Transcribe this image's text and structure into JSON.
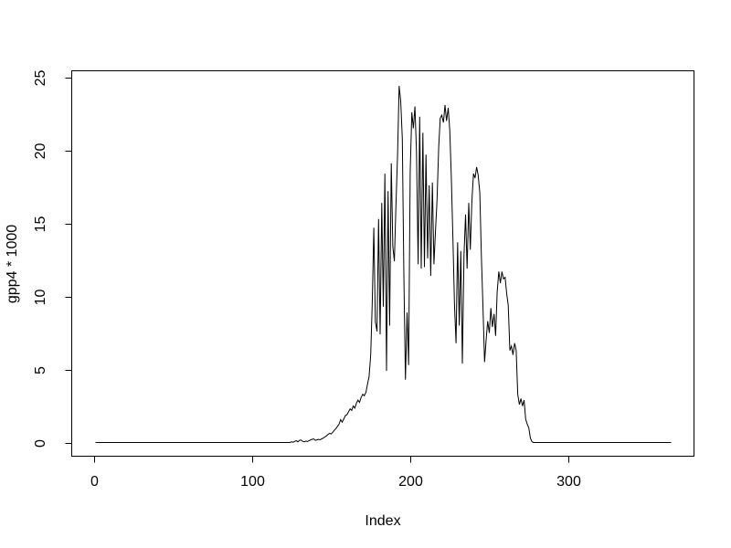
{
  "chart_data": {
    "type": "line",
    "title": "",
    "xlabel": "Index",
    "ylabel": "gpp4 * 1000",
    "legend": null,
    "grid": false,
    "line_color": "#000000",
    "background_color": "#ffffff",
    "x_ticks": [
      0,
      100,
      200,
      300
    ],
    "y_ticks": [
      0,
      5,
      10,
      15,
      20,
      25
    ],
    "xlim": [
      -14.02,
      379.44
    ],
    "ylim": [
      -0.9375,
      25.4375
    ],
    "x_range_of_data": [
      1,
      365
    ],
    "y_range_of_data": [
      0,
      24.4
    ],
    "series": [
      {
        "name": "gpp4 * 1000",
        "points": [
          [
            1,
            0
          ],
          [
            124,
            0
          ],
          [
            125,
            0.05
          ],
          [
            126,
            0.02
          ],
          [
            127,
            0.08
          ],
          [
            128,
            0.12
          ],
          [
            129,
            0.05
          ],
          [
            130,
            0.15
          ],
          [
            131,
            0.17
          ],
          [
            132,
            0.08
          ],
          [
            133,
            0.05
          ],
          [
            134,
            0.1
          ],
          [
            135,
            0.06
          ],
          [
            136,
            0.12
          ],
          [
            137,
            0.18
          ],
          [
            138,
            0.22
          ],
          [
            139,
            0.25
          ],
          [
            140,
            0.15
          ],
          [
            141,
            0.18
          ],
          [
            142,
            0.22
          ],
          [
            143,
            0.18
          ],
          [
            144,
            0.25
          ],
          [
            145,
            0.3
          ],
          [
            146,
            0.38
          ],
          [
            147,
            0.45
          ],
          [
            148,
            0.55
          ],
          [
            149,
            0.63
          ],
          [
            150,
            0.58
          ],
          [
            151,
            0.7
          ],
          [
            152,
            0.83
          ],
          [
            153,
            0.95
          ],
          [
            154,
            1.1
          ],
          [
            155,
            1.25
          ],
          [
            156,
            1.56
          ],
          [
            157,
            1.4
          ],
          [
            158,
            1.6
          ],
          [
            159,
            1.85
          ],
          [
            160,
            1.9
          ],
          [
            161,
            2.1
          ],
          [
            162,
            2.3
          ],
          [
            163,
            2.2
          ],
          [
            164,
            2.5
          ],
          [
            165,
            2.35
          ],
          [
            166,
            2.7
          ],
          [
            167,
            2.9
          ],
          [
            168,
            2.75
          ],
          [
            169,
            3.1
          ],
          [
            170,
            3.3
          ],
          [
            171,
            3.2
          ],
          [
            172,
            3.44
          ],
          [
            173,
            4.0
          ],
          [
            174,
            4.5
          ],
          [
            175,
            6.0
          ],
          [
            176,
            9.6
          ],
          [
            177,
            14.7
          ],
          [
            178,
            8.25
          ],
          [
            179,
            7.6
          ],
          [
            180,
            15.3
          ],
          [
            181,
            7.4
          ],
          [
            182,
            16.4
          ],
          [
            183,
            9.3
          ],
          [
            184,
            18.4
          ],
          [
            185,
            4.9
          ],
          [
            186,
            17.2
          ],
          [
            187,
            8.0
          ],
          [
            188,
            19.1
          ],
          [
            189,
            13.4
          ],
          [
            190,
            12.4
          ],
          [
            191,
            16.2
          ],
          [
            192,
            19.7
          ],
          [
            193,
            24.4
          ],
          [
            194,
            23.4
          ],
          [
            195,
            20.8
          ],
          [
            196,
            11.4
          ],
          [
            197,
            4.3
          ],
          [
            198,
            8.9
          ],
          [
            199,
            5.3
          ],
          [
            200,
            18.5
          ],
          [
            201,
            22.6
          ],
          [
            202,
            21.5
          ],
          [
            203,
            23.0
          ],
          [
            204,
            19.9
          ],
          [
            205,
            12.2
          ],
          [
            206,
            22.3
          ],
          [
            207,
            11.9
          ],
          [
            208,
            21.2
          ],
          [
            209,
            12.0
          ],
          [
            210,
            19.7
          ],
          [
            211,
            12.6
          ],
          [
            212,
            17.6
          ],
          [
            213,
            11.4
          ],
          [
            214,
            17.8
          ],
          [
            215,
            12.2
          ],
          [
            216,
            14.5
          ],
          [
            217,
            16.6
          ],
          [
            218,
            20.2
          ],
          [
            219,
            22.2
          ],
          [
            220,
            22.4
          ],
          [
            221,
            21.9
          ],
          [
            222,
            23.1
          ],
          [
            223,
            22.0
          ],
          [
            224,
            22.9
          ],
          [
            225,
            21.4
          ],
          [
            226,
            18.2
          ],
          [
            227,
            13.9
          ],
          [
            228,
            9.4
          ],
          [
            229,
            6.8
          ],
          [
            230,
            13.7
          ],
          [
            231,
            8.0
          ],
          [
            232,
            13.1
          ],
          [
            233,
            5.4
          ],
          [
            234,
            12.8
          ],
          [
            235,
            15.6
          ],
          [
            236,
            11.9
          ],
          [
            237,
            16.4
          ],
          [
            238,
            13.2
          ],
          [
            239,
            16.5
          ],
          [
            240,
            18.4
          ],
          [
            241,
            18.1
          ],
          [
            242,
            18.85
          ],
          [
            243,
            18.3
          ],
          [
            244,
            17.1
          ],
          [
            245,
            12.8
          ],
          [
            246,
            9.4
          ],
          [
            247,
            5.5
          ],
          [
            248,
            7.0
          ],
          [
            249,
            8.3
          ],
          [
            250,
            7.5
          ],
          [
            251,
            9.2
          ],
          [
            252,
            7.9
          ],
          [
            253,
            8.8
          ],
          [
            254,
            7.3
          ],
          [
            255,
            10.3
          ],
          [
            256,
            11.7
          ],
          [
            257,
            10.9
          ],
          [
            258,
            11.7
          ],
          [
            259,
            11.2
          ],
          [
            260,
            11.3
          ],
          [
            261,
            10.2
          ],
          [
            262,
            9.4
          ],
          [
            263,
            6.3
          ],
          [
            264,
            6.6
          ],
          [
            265,
            6.0
          ],
          [
            266,
            6.8
          ],
          [
            267,
            6.3
          ],
          [
            268,
            3.3
          ],
          [
            269,
            2.6
          ],
          [
            270,
            3.0
          ],
          [
            271,
            2.5
          ],
          [
            272,
            2.9
          ],
          [
            273,
            1.6
          ],
          [
            274,
            1.25
          ],
          [
            275,
            1.0
          ],
          [
            276,
            0.3
          ],
          [
            277,
            0.05
          ],
          [
            278,
            0
          ],
          [
            365,
            0
          ]
        ]
      }
    ]
  }
}
